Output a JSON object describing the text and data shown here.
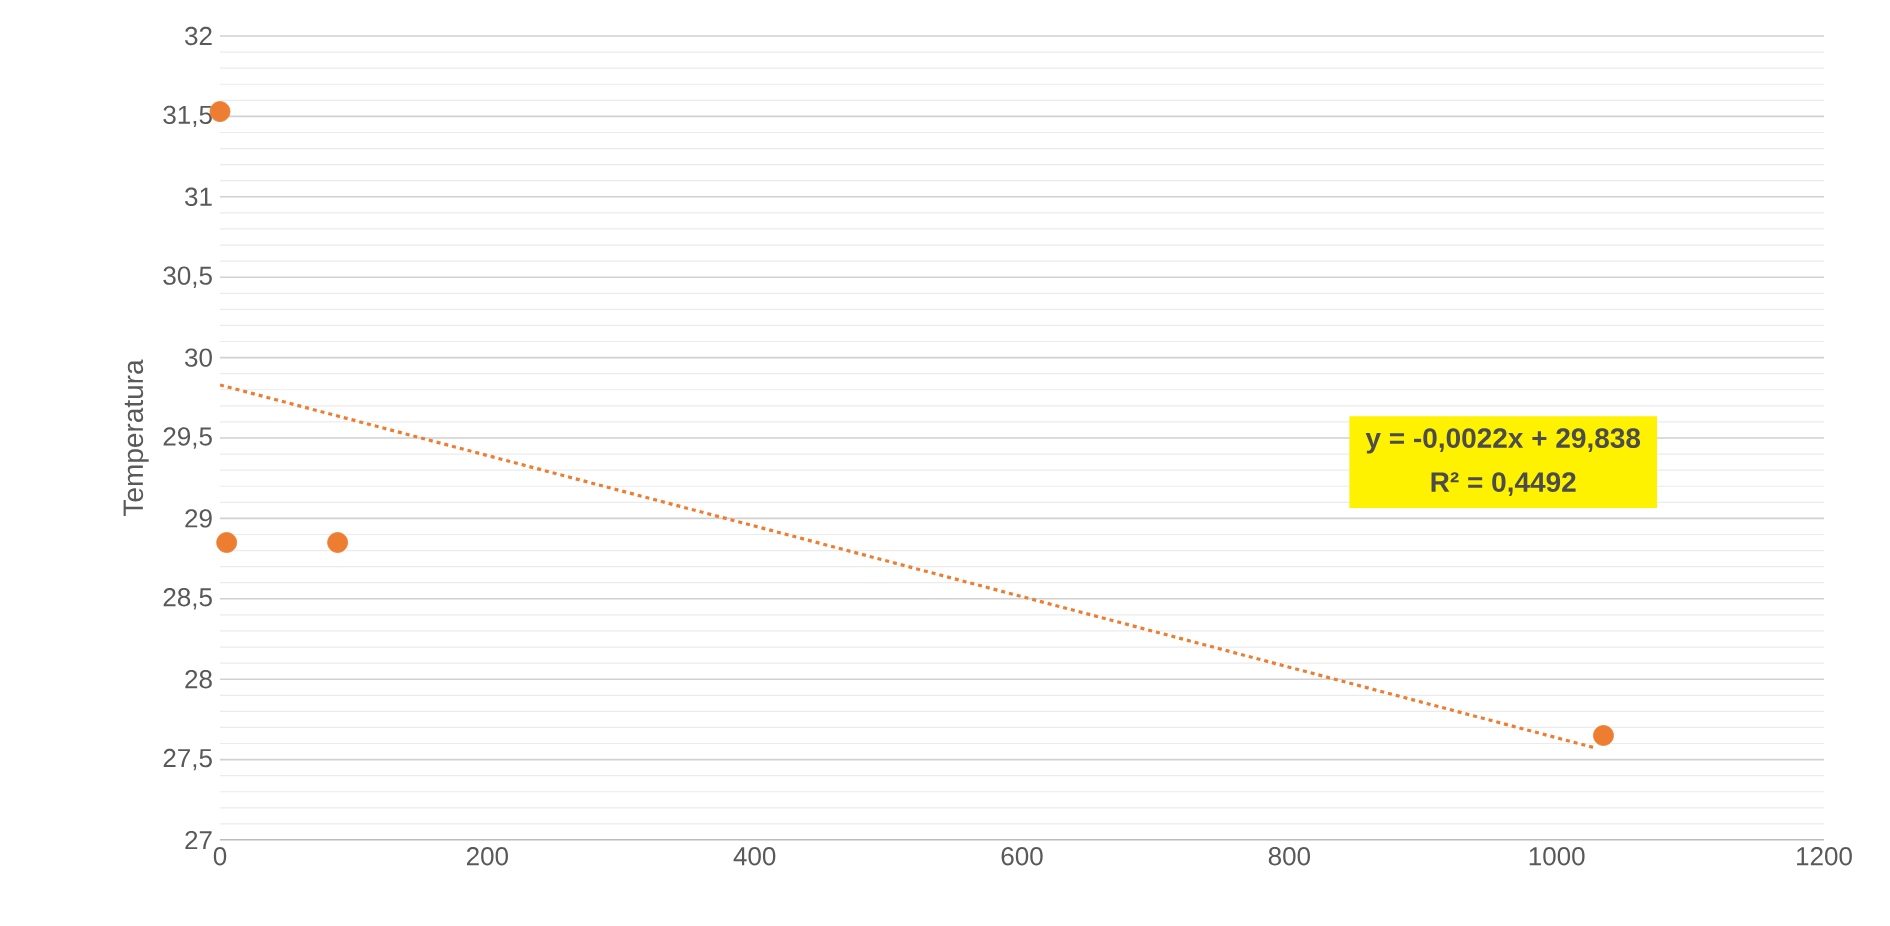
{
  "chart_data": {
    "type": "scatter",
    "ylabel": "Temperatura",
    "series": [
      {
        "color": "#ed7d31",
        "marker": "circle",
        "x": [
          0,
          5,
          88,
          1035
        ],
        "values": [
          31.53,
          28.85,
          28.85,
          27.65
        ]
      },
      {
        "type": "line",
        "color": "#ed7d31",
        "marker": "none",
        "line_style": "dotted",
        "x": [
          0,
          1030
        ],
        "values": [
          29.83,
          27.57
        ]
      }
    ],
    "xlim": [
      0,
      1200
    ],
    "xticks": [
      0,
      200,
      400,
      600,
      800,
      1000,
      1200
    ],
    "ylim": [
      27,
      32
    ],
    "yticks": [
      27,
      {
        "value": 27.5,
        "label": "27,5"
      },
      28,
      {
        "value": 28.5,
        "label": "28,5"
      },
      29,
      {
        "value": 29.5,
        "label": "29,5"
      },
      30,
      {
        "value": 30.5,
        "label": "30,5"
      },
      31,
      {
        "value": 31.5,
        "label": "31,5"
      },
      32
    ],
    "grid": "y",
    "annotations": [
      "y = -0,0022x + 29,838",
      "R² = 0,4492"
    ]
  }
}
